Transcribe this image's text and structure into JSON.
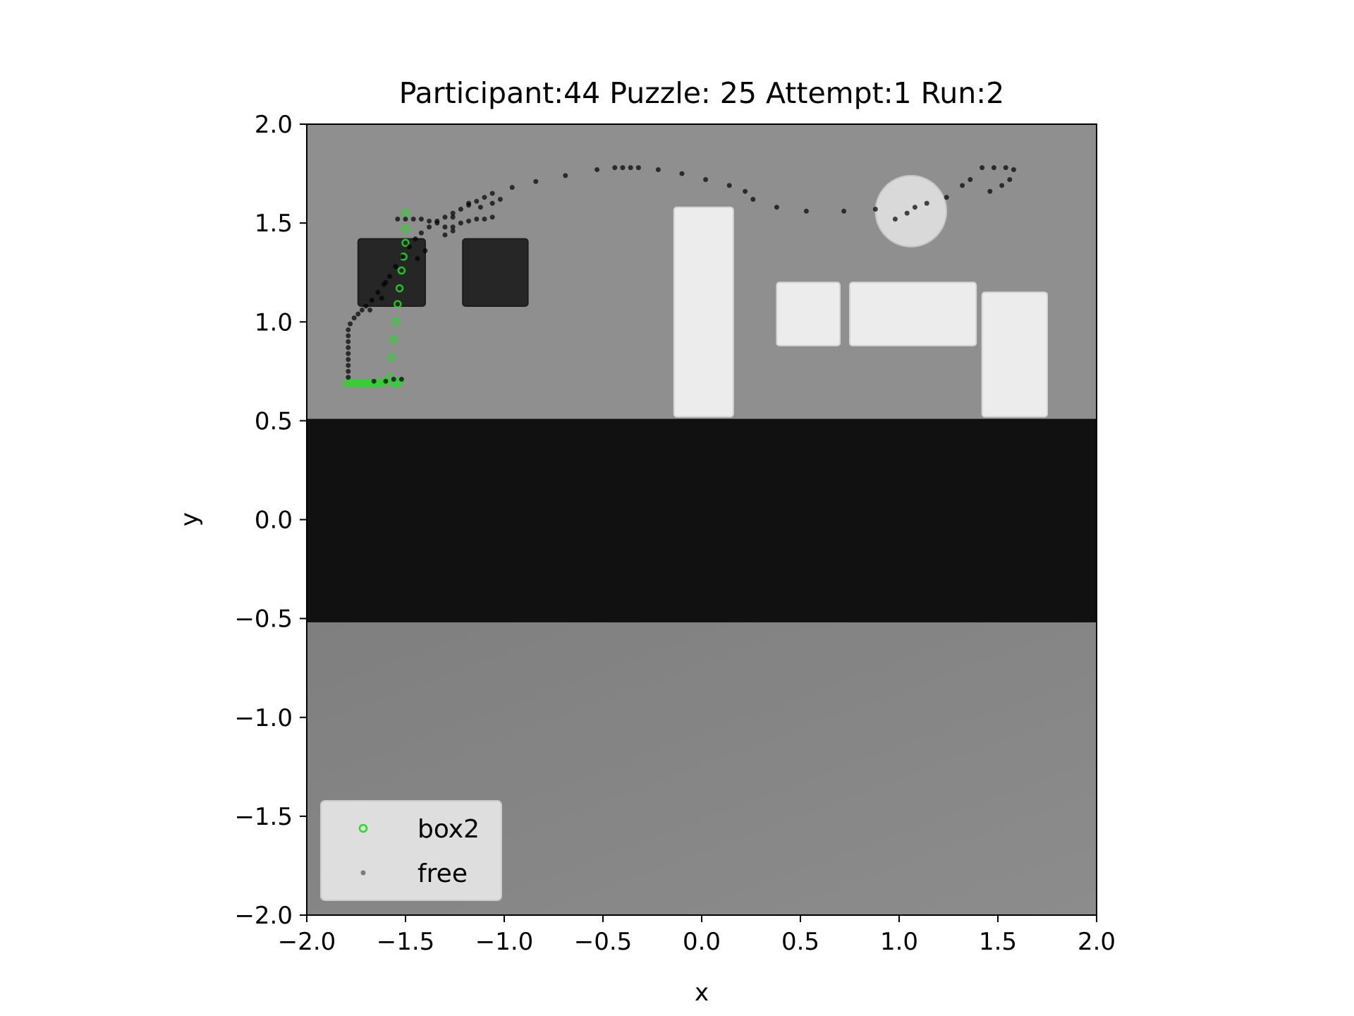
{
  "chart_data": {
    "type": "scatter",
    "title": "Participant:44 Puzzle: 25 Attempt:1 Run:2",
    "xlabel": "x",
    "ylabel": "y",
    "xlim": [
      -2.0,
      2.0
    ],
    "ylim": [
      -2.0,
      2.0
    ],
    "x_ticks": [
      "−2.0",
      "−1.5",
      "−1.0",
      "−0.5",
      "0.0",
      "0.5",
      "1.0",
      "1.5",
      "2.0"
    ],
    "y_ticks": [
      "−2.0",
      "−1.5",
      "−1.0",
      "−0.5",
      "0.0",
      "0.5",
      "1.0",
      "1.5",
      "2.0"
    ],
    "grid": false,
    "legend_position": "lower-left",
    "background_image": {
      "description": "scene top-down render",
      "colors": {
        "floor_upper": "#8f8f8f",
        "floor_lower": "#858585",
        "wall_band": "#111111",
        "dark_box": "#262626",
        "light_box": "#ececec",
        "cylinder": "#d9d9d9"
      },
      "wall_band_y": [
        -0.52,
        0.51
      ],
      "dark_boxes": [
        {
          "x": [
            -1.74,
            -1.4
          ],
          "y": [
            1.08,
            1.42
          ]
        },
        {
          "x": [
            -1.21,
            -0.88
          ],
          "y": [
            1.08,
            1.42
          ]
        }
      ],
      "light_boxes": [
        {
          "x": [
            -0.14,
            0.16
          ],
          "y": [
            0.52,
            1.58
          ]
        },
        {
          "x": [
            0.38,
            0.7
          ],
          "y": [
            0.88,
            1.2
          ]
        },
        {
          "x": [
            0.75,
            1.39
          ],
          "y": [
            0.88,
            1.2
          ]
        },
        {
          "x": [
            1.42,
            1.75
          ],
          "y": [
            0.52,
            1.15
          ]
        }
      ],
      "cylinder": {
        "cx": 1.06,
        "cy": 1.56,
        "r": 0.18
      }
    },
    "series": [
      {
        "name": "box2",
        "marker": "hollow-circle",
        "color": "#22dd22",
        "points": [
          [
            -1.8,
            0.69
          ],
          [
            -1.78,
            0.69
          ],
          [
            -1.76,
            0.69
          ],
          [
            -1.74,
            0.69
          ],
          [
            -1.72,
            0.69
          ],
          [
            -1.7,
            0.69
          ],
          [
            -1.68,
            0.69
          ],
          [
            -1.66,
            0.69
          ],
          [
            -1.64,
            0.69
          ],
          [
            -1.62,
            0.69
          ],
          [
            -1.6,
            0.7
          ],
          [
            -1.58,
            0.72
          ],
          [
            -1.56,
            0.69
          ],
          [
            -1.54,
            0.69
          ],
          [
            -1.53,
            0.7
          ],
          [
            -1.57,
            0.82
          ],
          [
            -1.56,
            0.91
          ],
          [
            -1.55,
            1.0
          ],
          [
            -1.54,
            1.09
          ],
          [
            -1.53,
            1.17
          ],
          [
            -1.52,
            1.26
          ],
          [
            -1.51,
            1.33
          ],
          [
            -1.5,
            1.4
          ],
          [
            -1.5,
            1.47
          ],
          [
            -1.5,
            1.55
          ]
        ]
      },
      {
        "name": "free",
        "marker": "dot",
        "color": "#000000",
        "points": [
          [
            -1.79,
            0.72
          ],
          [
            -1.79,
            0.75
          ],
          [
            -1.79,
            0.78
          ],
          [
            -1.79,
            0.81
          ],
          [
            -1.79,
            0.84
          ],
          [
            -1.79,
            0.87
          ],
          [
            -1.79,
            0.9
          ],
          [
            -1.79,
            0.93
          ],
          [
            -1.79,
            0.96
          ],
          [
            -1.78,
            0.99
          ],
          [
            -1.76,
            1.02
          ],
          [
            -1.74,
            1.04
          ],
          [
            -1.72,
            1.06
          ],
          [
            -1.7,
            1.08
          ],
          [
            -1.67,
            1.11
          ],
          [
            -1.64,
            1.15
          ],
          [
            -1.61,
            1.19
          ],
          [
            -1.58,
            1.23
          ],
          [
            -1.55,
            1.28
          ],
          [
            -1.52,
            1.33
          ],
          [
            -1.48,
            1.38
          ],
          [
            -1.45,
            1.42
          ],
          [
            -1.42,
            1.45
          ],
          [
            -1.38,
            1.48
          ],
          [
            -1.34,
            1.51
          ],
          [
            -1.3,
            1.53
          ],
          [
            -1.26,
            1.55
          ],
          [
            -1.22,
            1.57
          ],
          [
            -1.18,
            1.59
          ],
          [
            -1.14,
            1.61
          ],
          [
            -1.1,
            1.63
          ],
          [
            -1.06,
            1.65
          ],
          [
            -0.96,
            1.68
          ],
          [
            -0.84,
            1.71
          ],
          [
            -0.69,
            1.74
          ],
          [
            -0.53,
            1.77
          ],
          [
            -0.44,
            1.78
          ],
          [
            -0.4,
            1.78
          ],
          [
            -0.36,
            1.78
          ],
          [
            -0.32,
            1.78
          ],
          [
            -0.22,
            1.77
          ],
          [
            -0.1,
            1.75
          ],
          [
            0.02,
            1.72
          ],
          [
            0.14,
            1.69
          ],
          [
            0.22,
            1.66
          ],
          [
            0.26,
            1.62
          ],
          [
            0.38,
            1.58
          ],
          [
            0.53,
            1.56
          ],
          [
            0.72,
            1.56
          ],
          [
            0.88,
            1.57
          ],
          [
            0.98,
            1.52
          ],
          [
            1.04,
            1.55
          ],
          [
            1.08,
            1.58
          ],
          [
            1.14,
            1.6
          ],
          [
            1.24,
            1.63
          ],
          [
            1.32,
            1.69
          ],
          [
            1.36,
            1.72
          ],
          [
            1.42,
            1.78
          ],
          [
            1.48,
            1.78
          ],
          [
            1.54,
            1.78
          ],
          [
            1.58,
            1.77
          ],
          [
            1.56,
            1.72
          ],
          [
            1.52,
            1.69
          ],
          [
            1.46,
            1.66
          ],
          [
            -1.54,
            1.52
          ],
          [
            -1.5,
            1.52
          ],
          [
            -1.46,
            1.52
          ],
          [
            -1.42,
            1.52
          ],
          [
            -1.38,
            1.51
          ],
          [
            -1.34,
            1.5
          ],
          [
            -1.3,
            1.48
          ],
          [
            -1.26,
            1.46
          ],
          [
            -1.3,
            1.44
          ],
          [
            -1.26,
            1.48
          ],
          [
            -1.22,
            1.5
          ],
          [
            -1.18,
            1.51
          ],
          [
            -1.14,
            1.52
          ],
          [
            -1.1,
            1.52
          ],
          [
            -1.06,
            1.53
          ],
          [
            -1.4,
            1.36
          ],
          [
            -1.44,
            1.32
          ],
          [
            -1.6,
            1.2
          ],
          [
            -1.62,
            1.12
          ],
          [
            -1.68,
            1.06
          ],
          [
            -1.66,
            0.7
          ],
          [
            -1.6,
            0.7
          ],
          [
            -1.56,
            0.71
          ],
          [
            -1.52,
            0.71
          ],
          [
            -1.18,
            1.6
          ],
          [
            -1.12,
            1.58
          ],
          [
            -1.06,
            1.6
          ],
          [
            -1.02,
            1.62
          ],
          [
            -1.26,
            1.53
          ]
        ]
      }
    ]
  }
}
